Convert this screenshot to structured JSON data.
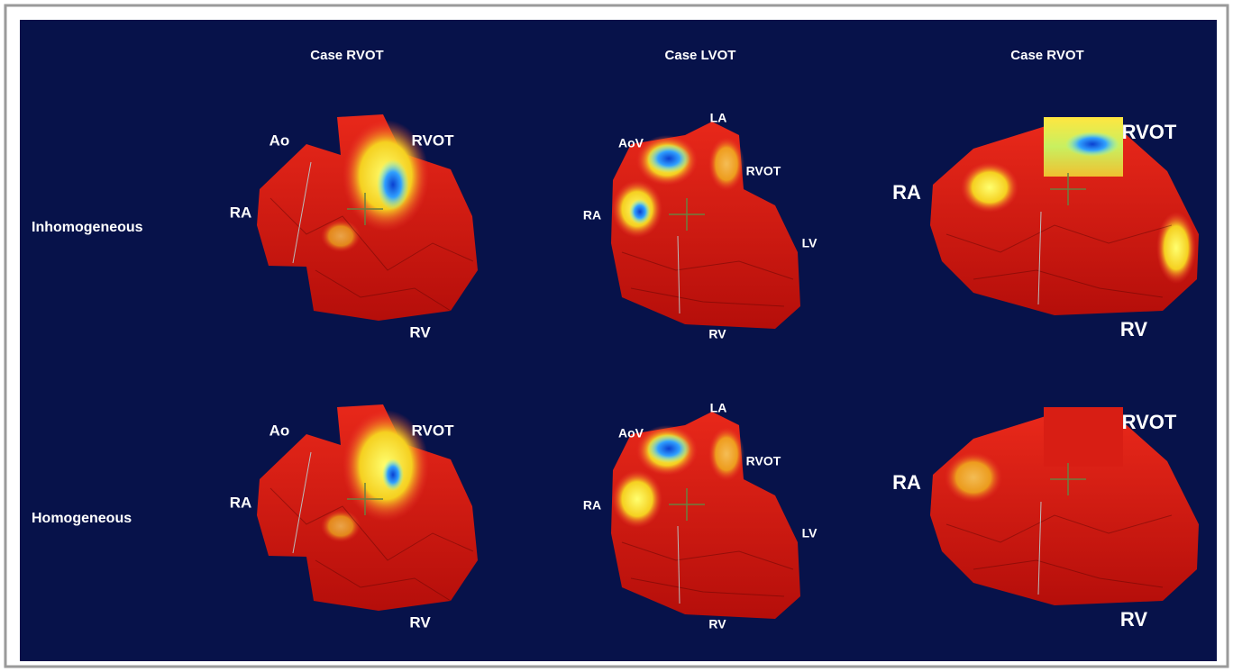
{
  "columns": [
    "Case RVOT",
    "Case LVOT",
    "Case RVOT"
  ],
  "rows": [
    "Inhomogeneous",
    "Homogeneous"
  ],
  "panels": [
    {
      "labels": [
        "Ao",
        "RVOT",
        "RA",
        "RV"
      ]
    },
    {
      "labels": [
        "LA",
        "AoV",
        "RVOT",
        "RA",
        "LV",
        "RV"
      ]
    },
    {
      "labels": [
        "RVOT",
        "RA",
        "RV"
      ]
    },
    {
      "labels": [
        "Ao",
        "RVOT",
        "RA",
        "RV"
      ]
    },
    {
      "labels": [
        "LA",
        "AoV",
        "RVOT",
        "RA",
        "LV",
        "RV"
      ]
    },
    {
      "labels": [
        "RVOT",
        "RA",
        "RV"
      ]
    }
  ]
}
